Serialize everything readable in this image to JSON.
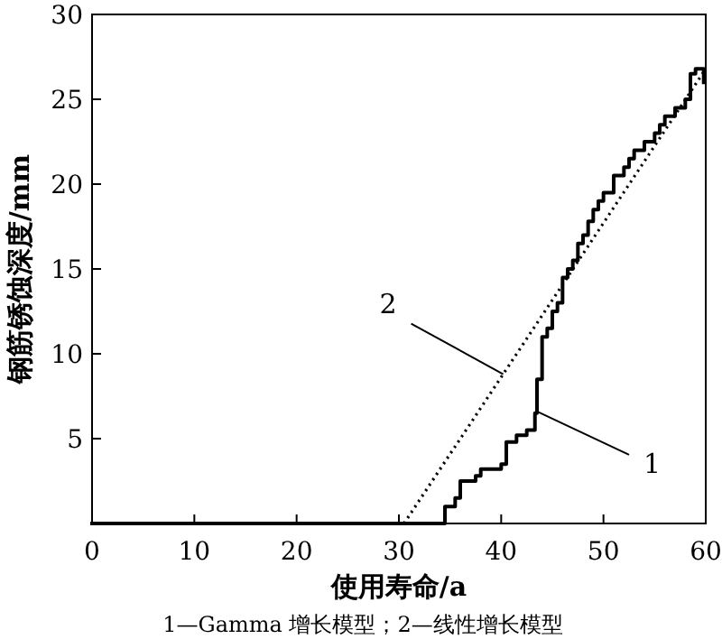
{
  "chart_data": {
    "type": "line",
    "xlabel": "使用寿命/a",
    "ylabel": "钢筋锈蚀深度/mm",
    "xlim": [
      0,
      60
    ],
    "ylim": [
      0,
      30
    ],
    "xticks": [
      0,
      10,
      20,
      30,
      40,
      50,
      60
    ],
    "yticks": [
      {
        "value": 0,
        "label": null
      },
      5,
      10,
      15,
      20,
      25,
      30
    ],
    "series": [
      {
        "type": "step",
        "color": "#000000",
        "line_style": "solid",
        "x": [
          0,
          34.2,
          34.5,
          35.5,
          36,
          37.5,
          38,
          40,
          40.5,
          41.5,
          42.5,
          43.3,
          43.5,
          44,
          44.5,
          45,
          45.5,
          46,
          46.5,
          47,
          47.5,
          48,
          48.5,
          49,
          49.5,
          50,
          51,
          52,
          52.5,
          53,
          54,
          55,
          55.5,
          56,
          57,
          58,
          58.5,
          59,
          59.8
        ],
        "values": [
          0,
          0,
          1,
          1.5,
          2.5,
          2.8,
          3.2,
          3.5,
          4.8,
          5.2,
          5.5,
          6.5,
          8.5,
          11,
          11.5,
          12.5,
          13,
          14.5,
          15,
          15.5,
          16.5,
          17,
          17.8,
          18.5,
          19,
          19.5,
          20.5,
          21,
          21.5,
          22,
          22.5,
          23,
          23.5,
          24,
          24.5,
          25,
          26.5,
          26.8,
          26
        ]
      },
      {
        "color": "#000000",
        "line_style": "dotted",
        "x": [
          30.5,
          60
        ],
        "values": [
          0,
          26.8
        ]
      }
    ],
    "annotations": [
      {
        "text": "1",
        "x": 43.5,
        "y": 6.6
      },
      {
        "text": "2",
        "x": 40.2,
        "y": 8.8
      },
      "1—Gamma 增长模型；2—线性增长模型"
    ]
  }
}
